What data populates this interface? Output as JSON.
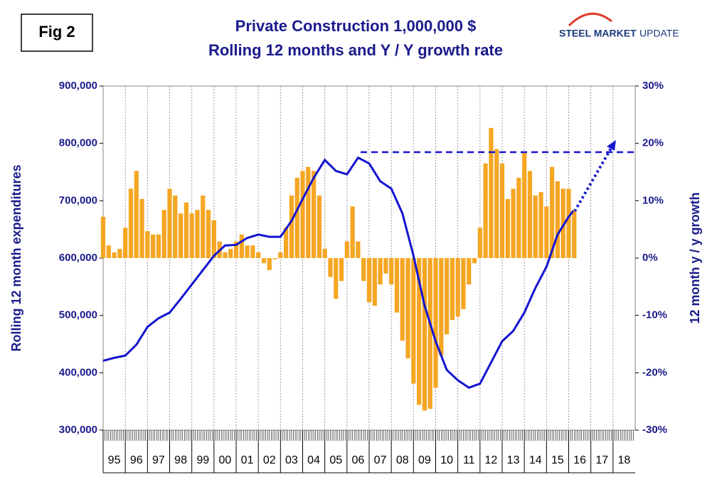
{
  "fig_label": "Fig 2",
  "logo": {
    "brand": "STEEL MARKET",
    "suffix": "UPDATE"
  },
  "chart_data": {
    "type": "bar-line",
    "title": "Private Construction 1,000,000 $",
    "subtitle": "Rolling 12 months and Y / Y growth rate",
    "y_label": "Rolling 12 month expenditures",
    "y2_label": "12 month y / y growth",
    "xlim": [
      1995,
      2019
    ],
    "ylim": [
      300000,
      900000
    ],
    "yticks": [
      {
        "value": 300000,
        "label": "300,000"
      },
      {
        "value": 400000,
        "label": "400,000"
      },
      {
        "value": 500000,
        "label": "500,000"
      },
      {
        "value": 600000,
        "label": "600,000"
      },
      {
        "value": 700000,
        "label": "700,000"
      },
      {
        "value": 800000,
        "label": "800,000"
      },
      {
        "value": 900000,
        "label": "900,000"
      }
    ],
    "y2lim": [
      -30,
      30
    ],
    "y2ticks": [
      {
        "value": -30,
        "label": "-30%"
      },
      {
        "value": -20,
        "label": "-20%"
      },
      {
        "value": -10,
        "label": "-10%"
      },
      {
        "value": 0,
        "label": "0%"
      },
      {
        "value": 10,
        "label": "10%"
      },
      {
        "value": 20,
        "label": "20%"
      },
      {
        "value": 30,
        "label": "30%"
      }
    ],
    "xticks": [
      {
        "value": 1995,
        "label": "95"
      },
      {
        "value": 1996,
        "label": "96"
      },
      {
        "value": 1997,
        "label": "97"
      },
      {
        "value": 1998,
        "label": "98"
      },
      {
        "value": 1999,
        "label": "99"
      },
      {
        "value": 2000,
        "label": "00"
      },
      {
        "value": 2001,
        "label": "01"
      },
      {
        "value": 2002,
        "label": "02"
      },
      {
        "value": 2003,
        "label": "03"
      },
      {
        "value": 2004,
        "label": "04"
      },
      {
        "value": 2005,
        "label": "05"
      },
      {
        "value": 2006,
        "label": "06"
      },
      {
        "value": 2007,
        "label": "07"
      },
      {
        "value": 2008,
        "label": "08"
      },
      {
        "value": 2009,
        "label": "09"
      },
      {
        "value": 2010,
        "label": "10"
      },
      {
        "value": 2011,
        "label": "11"
      },
      {
        "value": 2012,
        "label": "12"
      },
      {
        "value": 2013,
        "label": "13"
      },
      {
        "value": 2014,
        "label": "14"
      },
      {
        "value": 2015,
        "label": "15"
      },
      {
        "value": 2016,
        "label": "16"
      },
      {
        "value": 2017,
        "label": "17"
      },
      {
        "value": 2018,
        "label": "18"
      }
    ],
    "grid": true,
    "series": [
      {
        "type": "bar",
        "axis": "y2",
        "color": "#f5a623",
        "x": [
          1995,
          1995.25,
          1995.5,
          1995.75,
          1996,
          1996.25,
          1996.5,
          1996.75,
          1997,
          1997.25,
          1997.5,
          1997.75,
          1998,
          1998.25,
          1998.5,
          1998.75,
          1999,
          1999.25,
          1999.5,
          1999.75,
          2000,
          2000.25,
          2000.5,
          2000.75,
          2001,
          2001.25,
          2001.5,
          2001.75,
          2002,
          2002.25,
          2002.5,
          2002.75,
          2003,
          2003.25,
          2003.5,
          2003.75,
          2004,
          2004.25,
          2004.5,
          2004.75,
          2005,
          2005.25,
          2005.5,
          2005.75,
          2006,
          2006.25,
          2006.5,
          2006.75,
          2007,
          2007.25,
          2007.5,
          2007.75,
          2008,
          2008.25,
          2008.5,
          2008.75,
          2009,
          2009.25,
          2009.5,
          2009.75,
          2010,
          2010.25,
          2010.5,
          2010.75,
          2011,
          2011.25,
          2011.5,
          2011.75,
          2012,
          2012.25,
          2012.5,
          2012.75,
          2013,
          2013.25,
          2013.5,
          2013.75,
          2014,
          2014.25,
          2014.5,
          2014.75,
          2015,
          2015.25,
          2015.5,
          2015.75,
          2016,
          2016.25
        ],
        "values": [
          7.2,
          2.2,
          1,
          1.6,
          5.3,
          12.1,
          15.2,
          10.3,
          4.7,
          4.1,
          4.1,
          8.4,
          12.1,
          10.9,
          7.8,
          9.7,
          7.8,
          8.4,
          10.9,
          8.4,
          6.6,
          2.9,
          1,
          1.6,
          2.9,
          4.1,
          2.2,
          2.2,
          1,
          -0.9,
          -2.1,
          -0.2,
          1,
          5.3,
          10.9,
          14,
          15.2,
          15.9,
          15.2,
          10.9,
          1.6,
          -3.3,
          -7.1,
          -4,
          2.9,
          9,
          2.9,
          -4,
          -7.7,
          -8.3,
          -4.6,
          -2.7,
          -4.6,
          -9.5,
          -14.4,
          -17.5,
          -21.9,
          -25.6,
          -26.6,
          -26.3,
          -22.6,
          -17,
          -13.3,
          -10.8,
          -10.2,
          -8.9,
          -4.6,
          -0.9,
          5.3,
          16.5,
          22.7,
          19,
          16.5,
          10.3,
          12.1,
          14,
          18.3,
          15.2,
          10.9,
          11.5,
          9,
          15.9,
          13.4,
          12.1,
          12.1,
          8.4
        ]
      },
      {
        "type": "line",
        "axis": "y",
        "color": "#1414d2",
        "x": [
          1995,
          1995.5,
          1996,
          1996.5,
          1997,
          1997.5,
          1998,
          1998.5,
          1999,
          1999.5,
          2000,
          2000.5,
          2001,
          2001.5,
          2002,
          2002.5,
          2003,
          2003.5,
          2004,
          2004.5,
          2005,
          2005.5,
          2006,
          2006.5,
          2007,
          2007.5,
          2008,
          2008.5,
          2009,
          2009.5,
          2010,
          2010.5,
          2011,
          2011.5,
          2012,
          2012.5,
          2013,
          2013.5,
          2014,
          2014.5,
          2015,
          2015.5,
          2016,
          2016.2
        ],
        "values": [
          421000,
          426000,
          430000,
          449000,
          480000,
          495000,
          505000,
          529000,
          554000,
          579000,
          604000,
          622000,
          623000,
          635000,
          641000,
          637000,
          637000,
          665000,
          703000,
          740000,
          771000,
          752000,
          746000,
          775000,
          765000,
          734000,
          721000,
          678000,
          604000,
          517000,
          455000,
          405000,
          387000,
          374000,
          381000,
          418000,
          455000,
          473000,
          505000,
          548000,
          585000,
          641000,
          672000,
          682000
        ]
      }
    ]
  }
}
